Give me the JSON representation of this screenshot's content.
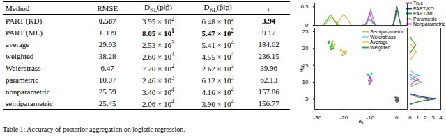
{
  "table": {
    "header": [
      [
        {
          "text": "Method"
        }
      ],
      [
        {
          "text": "RMSE"
        }
      ],
      [
        {
          "text": "D"
        },
        {
          "sub": "KL"
        },
        {
          "text": "(p‖p̂)"
        }
      ],
      [
        {
          "text": "D"
        },
        {
          "sub": "KL"
        },
        {
          "text": "(p̂‖p)"
        }
      ],
      [
        {
          "text": "r"
        }
      ]
    ],
    "rows": [
      [
        {
          "text": "PART (KD)"
        },
        {
          "text": "0.587",
          "bold": true
        },
        {
          "m": "3.95 × 10",
          "e": "2"
        },
        {
          "m": "6.48 × 10",
          "e": "2"
        },
        {
          "text": "3.94",
          "bold": true
        }
      ],
      [
        {
          "text": "PART (ML)"
        },
        {
          "text": "1.399"
        },
        {
          "m": "8.05 × 10",
          "e": "1",
          "bold": true
        },
        {
          "m": "5.47 × 10",
          "e": "2",
          "bold": true
        },
        {
          "text": "9.17"
        }
      ],
      [
        {
          "text": "average"
        },
        {
          "text": "29.93"
        },
        {
          "m": "2.53 × 10",
          "e": "3"
        },
        {
          "m": "5.41 × 10",
          "e": "4"
        },
        {
          "text": "184.62"
        }
      ],
      [
        {
          "text": "weighted"
        },
        {
          "text": "38.28"
        },
        {
          "m": "2.60 × 10",
          "e": "4"
        },
        {
          "m": "4.55 × 10",
          "e": "4"
        },
        {
          "text": "236.15"
        }
      ],
      [
        {
          "text": "Weierstrass"
        },
        {
          "text": "6.47"
        },
        {
          "m": "7.20 × 10",
          "e": "2"
        },
        {
          "m": "2.62 × 10",
          "e": "3"
        },
        {
          "text": "39.96"
        }
      ],
      [
        {
          "text": "parametric"
        },
        {
          "text": "10.07"
        },
        {
          "m": "2.46 × 10",
          "e": "3"
        },
        {
          "m": "6.12 × 10",
          "e": "3"
        },
        {
          "text": "62.13"
        }
      ],
      [
        {
          "text": "nonparametric"
        },
        {
          "text": "25.59"
        },
        {
          "m": "3.40 × 10",
          "e": "4"
        },
        {
          "m": "4.16 × 10",
          "e": "4"
        },
        {
          "text": "157.86"
        }
      ],
      [
        {
          "text": "semiparametric"
        },
        {
          "text": "25.45"
        },
        {
          "m": "2.06 × 10",
          "e": "4"
        },
        {
          "m": "3.90 × 10",
          "e": "4"
        },
        {
          "text": "156.77"
        }
      ]
    ]
  },
  "caption": "Table 1: Accuracy of posterior aggregation on logistic regression.",
  "chart_data": [
    {
      "type": "scatter",
      "x_label": "θ₁",
      "y_label": "θ₁₇",
      "xlim": [
        -31,
        4
      ],
      "xticks": [
        -30,
        -20,
        -10,
        0
      ],
      "ylim": [
        2,
        26
      ],
      "yticks": [
        5,
        10,
        15,
        20,
        25
      ],
      "legend": "upper right",
      "marker": "circle",
      "series": [
        {
          "name": "Semiparametric",
          "color": "#b5d334",
          "x": [
            -24.5,
            -23.8,
            -25,
            -24.2,
            -23.5
          ],
          "y": [
            21.5,
            20.5,
            20,
            22,
            21
          ]
        },
        {
          "name": "Weierstrass",
          "color": "#22c7d6",
          "x": [
            -10.5,
            -9.5,
            -10,
            -11
          ],
          "y": [
            12,
            12.5,
            11.5,
            12.3
          ]
        },
        {
          "name": "Average",
          "color": "#f0a020",
          "x": [
            -20,
            -19.5,
            -21,
            -20.5,
            -19.2
          ],
          "y": [
            19,
            18.5,
            19.5,
            18,
            19.2
          ]
        },
        {
          "name": "Weighted",
          "color": "#3aa845",
          "x": [
            -25.5,
            -24.5,
            -25,
            -24,
            -25.8,
            -24.8
          ],
          "y": [
            22,
            21,
            20.5,
            20,
            21.5,
            19.8
          ]
        }
      ]
    },
    {
      "type": "scatter",
      "xlim": [
        -31,
        4
      ],
      "ylim": [
        2,
        26
      ],
      "tick_labels": false,
      "legend": "top right",
      "marker": "circle",
      "series": [
        {
          "name": "True",
          "color": "#e3161b",
          "line_style": "dashed",
          "x": [
            0,
            0.5,
            -0.4
          ],
          "y": [
            5,
            4.5,
            5.4
          ]
        },
        {
          "name": "PART-KD",
          "color": "#1f3fbf",
          "x": [
            0.2,
            -0.3,
            0.6
          ],
          "y": [
            5,
            4.6,
            5.2
          ]
        },
        {
          "name": "PART-ML",
          "color": "#2e9e3c",
          "x": [
            0.4,
            0,
            -0.2
          ],
          "y": [
            5.3,
            4.2,
            4.8
          ]
        },
        {
          "name": "Parametric",
          "color": "#8c8c8c",
          "x": [
            -10,
            -10.3,
            -9.6
          ],
          "y": [
            10,
            9.5,
            10.4
          ]
        },
        {
          "name": "Nonparametric",
          "color": "#e632d8",
          "x": [
            -9.8,
            -10.5,
            -10.1
          ],
          "y": [
            11,
            10.5,
            11.3
          ]
        }
      ]
    },
    {
      "type": "line",
      "xlim": [
        -31,
        4
      ],
      "ylim": [
        0,
        0.6
      ],
      "yticks": [
        0,
        0.5
      ],
      "tick_labels": "y",
      "series": [
        {
          "name": "Weighted",
          "color": "#3aa845",
          "x": [
            -28,
            -26.5,
            -25,
            -23.5,
            -22
          ],
          "y": [
            0,
            0.12,
            0.28,
            0.12,
            0
          ]
        },
        {
          "name": "Semiparametric",
          "color": "#b5d334",
          "x": [
            -27.5,
            -26,
            -24.5,
            -23,
            -21.5
          ],
          "y": [
            0,
            0.1,
            0.25,
            0.1,
            0
          ]
        },
        {
          "name": "Average",
          "color": "#f0a020",
          "x": [
            -23,
            -21.5,
            -20,
            -18.5,
            -17
          ],
          "y": [
            0,
            0.15,
            0.3,
            0.15,
            0
          ]
        },
        {
          "name": "Weierstrass",
          "color": "#22c7d6",
          "x": [
            -13,
            -11.5,
            -10.2,
            -9,
            -7.5
          ],
          "y": [
            0,
            0.06,
            0.15,
            0.06,
            0
          ]
        },
        {
          "name": "Parametric",
          "color": "#8c8c8c",
          "x": [
            -11.5,
            -10.5,
            -9.8,
            -9,
            -8
          ],
          "y": [
            0,
            0.2,
            0.45,
            0.2,
            0
          ]
        },
        {
          "name": "Nonparametric",
          "color": "#e632d8",
          "x": [
            -12,
            -11,
            -10.2,
            -9.4,
            -8.4
          ],
          "y": [
            0,
            0.15,
            0.35,
            0.15,
            0
          ]
        },
        {
          "name": "True",
          "color": "#e3161b",
          "line_style": "dashed",
          "x": [
            -1.5,
            -0.7,
            0,
            0.7,
            1.5
          ],
          "y": [
            0,
            0.25,
            0.55,
            0.25,
            0
          ]
        },
        {
          "name": "PART-KD",
          "color": "#1f3fbf",
          "x": [
            -1.4,
            -0.6,
            0.1,
            0.8,
            1.6
          ],
          "y": [
            0,
            0.22,
            0.5,
            0.22,
            0
          ]
        },
        {
          "name": "PART-ML",
          "color": "#2e9e3c",
          "x": [
            -1.2,
            -0.5,
            0.2,
            0.9,
            1.6
          ],
          "y": [
            0,
            0.2,
            0.45,
            0.2,
            0
          ]
        }
      ]
    },
    {
      "type": "line",
      "xlim": [
        0,
        4
      ],
      "xticks": [
        0,
        1,
        2,
        3,
        4
      ],
      "ylim": [
        2,
        26
      ],
      "tick_labels": "x",
      "series": [
        {
          "name": "True",
          "color": "#e3161b",
          "line_style": "dashed",
          "x": [
            0,
            1.2,
            3,
            1.2,
            0
          ],
          "y": [
            3.5,
            4.3,
            5,
            5.7,
            6.5
          ]
        },
        {
          "name": "PART-KD",
          "color": "#1f3fbf",
          "x": [
            0,
            1.4,
            3.3,
            1.4,
            0
          ],
          "y": [
            3.6,
            4.4,
            5.1,
            5.8,
            6.6
          ]
        },
        {
          "name": "PART-ML",
          "color": "#2e9e3c",
          "x": [
            0,
            1,
            2.6,
            1,
            0
          ],
          "y": [
            3.4,
            4.2,
            4.9,
            5.6,
            6.4
          ]
        },
        {
          "name": "Parametric",
          "color": "#8c8c8c",
          "x": [
            0,
            0.6,
            1.5,
            0.6,
            0
          ],
          "y": [
            8.5,
            9.3,
            10,
            10.7,
            11.5
          ]
        },
        {
          "name": "Nonparametric",
          "color": "#e632d8",
          "x": [
            0,
            0.4,
            1.1,
            0.4,
            0
          ],
          "y": [
            9,
            10,
            10.8,
            11.6,
            12.5
          ]
        },
        {
          "name": "Weierstrass",
          "color": "#22c7d6",
          "x": [
            0,
            0.5,
            1.2,
            0.5,
            0
          ],
          "y": [
            10.5,
            11.5,
            12,
            12.5,
            13.5
          ]
        },
        {
          "name": "Average",
          "color": "#f0a020",
          "x": [
            0,
            0.4,
            0.8,
            0.4,
            0
          ],
          "y": [
            16.5,
            17.8,
            19,
            20.2,
            21.5
          ]
        },
        {
          "name": "Semiparametric",
          "color": "#b5d334",
          "x": [
            0,
            0.3,
            0.7,
            0.3,
            0
          ],
          "y": [
            18.5,
            19.8,
            21,
            22.2,
            23.5
          ]
        },
        {
          "name": "Weighted",
          "color": "#3aa845",
          "x": [
            0,
            0.35,
            0.75,
            0.35,
            0
          ],
          "y": [
            18.5,
            19.8,
            21,
            22.2,
            23.5
          ]
        }
      ]
    }
  ]
}
